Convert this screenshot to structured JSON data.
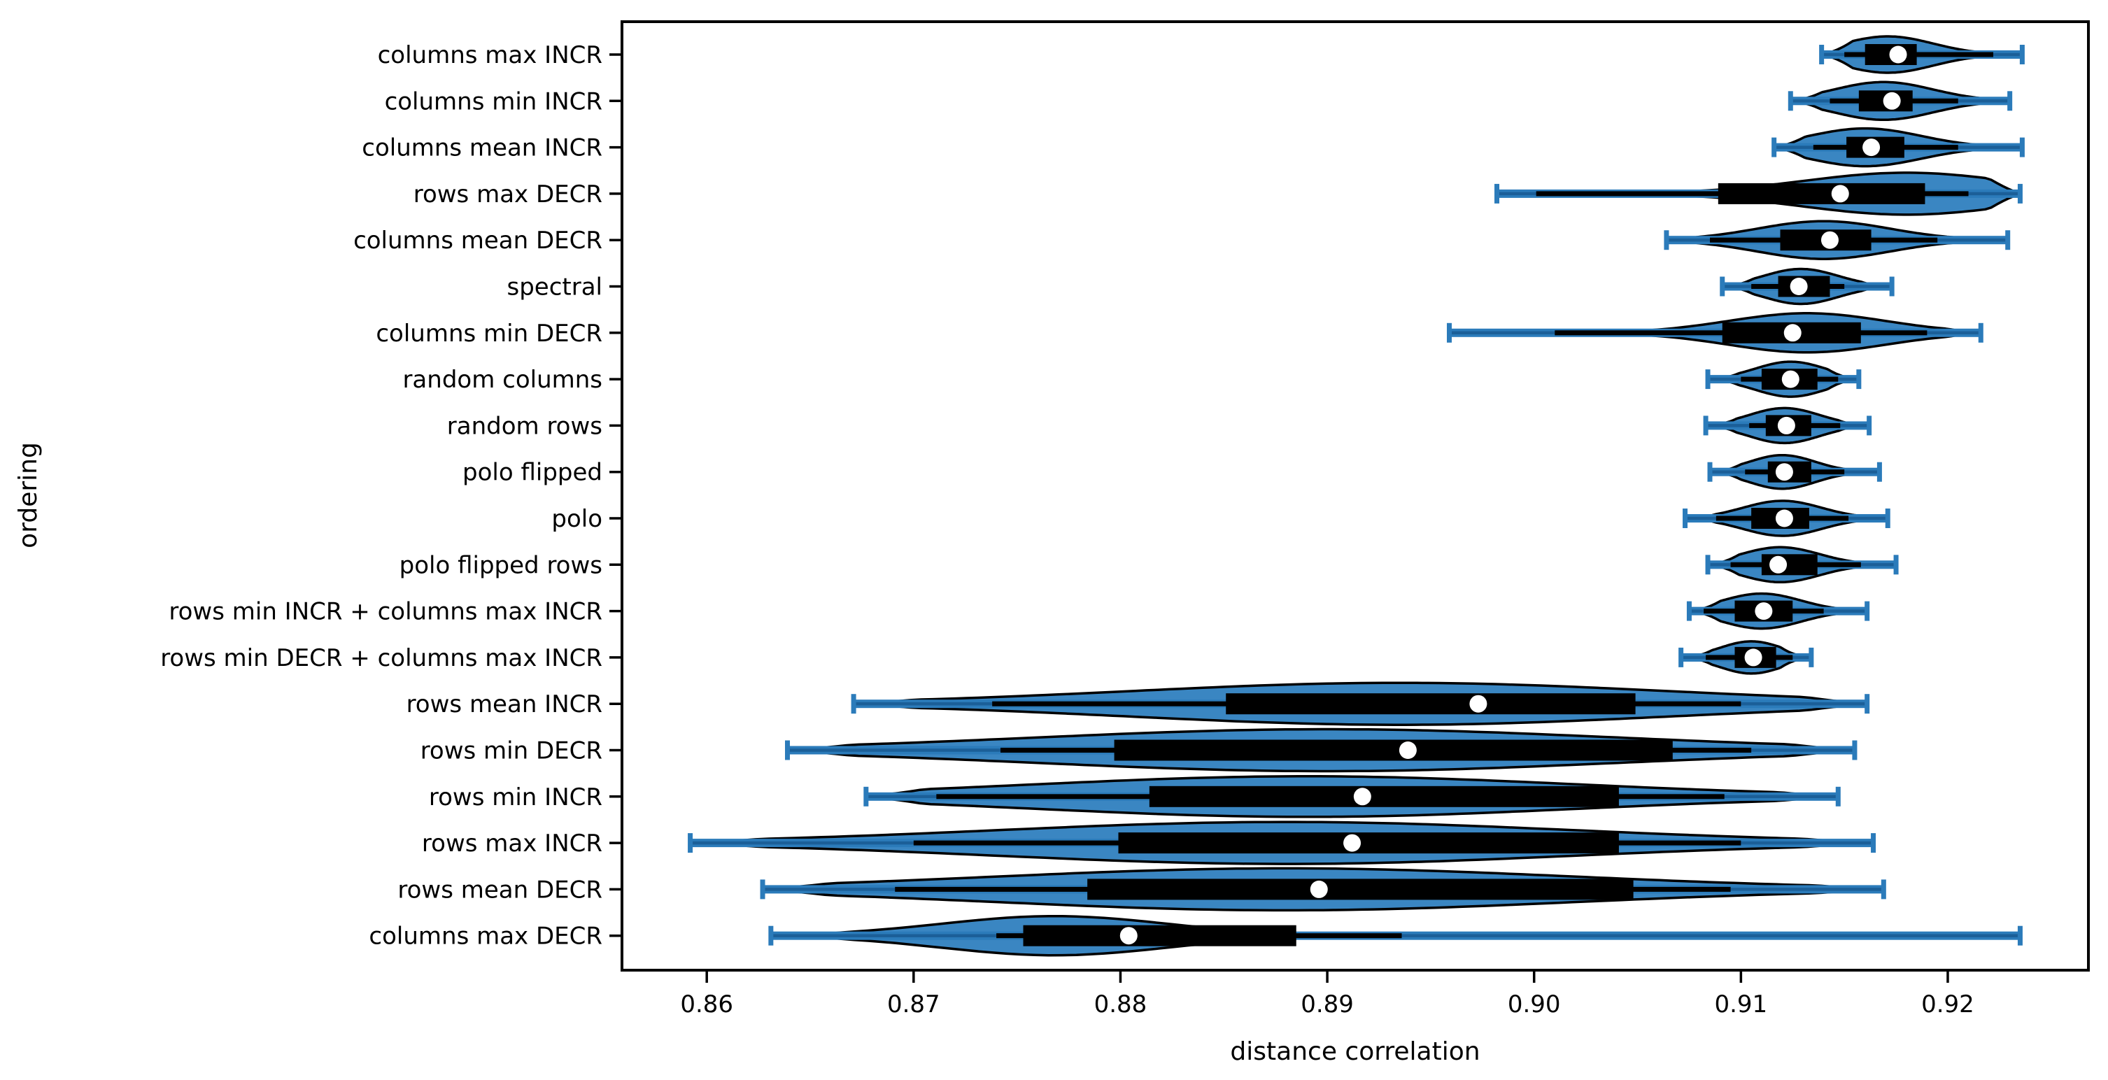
{
  "chart_data": {
    "type": "violin",
    "orientation": "horizontal",
    "title": "",
    "xlabel": "distance correlation",
    "ylabel": "ordering",
    "xlim": [
      0.8559,
      0.9268
    ],
    "x_ticks": [
      0.86,
      0.87,
      0.88,
      0.89,
      0.9,
      0.91,
      0.92
    ],
    "x_tick_labels": [
      "0.86",
      "0.87",
      "0.88",
      "0.89",
      "0.90",
      "0.91",
      "0.92"
    ],
    "grid": false,
    "legend": null,
    "colors": {
      "violin_fill": "#3a86c2",
      "violin_edge": "#000000",
      "whisker_band": "#2b7bba",
      "whisker_dark": "#1b5f98",
      "cap": "#2b7bba",
      "box": "#000000",
      "black_whisker": "#000000",
      "median_dot": "#ffffff",
      "text": "#000000",
      "background": "#ffffff"
    },
    "categories": [
      "columns max INCR",
      "columns min INCR",
      "columns mean INCR",
      "rows max DECR",
      "columns mean DECR",
      "spectral",
      "columns min DECR",
      "random columns",
      "random rows",
      "polo flipped",
      "polo",
      "polo flipped rows",
      "rows min INCR + columns max INCR",
      "rows min DECR + columns max INCR",
      "rows mean INCR",
      "rows min DECR",
      "rows min INCR",
      "rows max INCR",
      "rows mean DECR",
      "columns max DECR"
    ],
    "rows": [
      {
        "label": "columns max INCR",
        "whisker_min": 0.9139,
        "whisker_max": 0.9236,
        "q1": 0.916,
        "median": 0.9176,
        "q3": 0.9185,
        "mode": 0.9171,
        "bandwidth": 0.0022,
        "half_width": 26,
        "black_whisker": [
          0.915,
          0.9222
        ]
      },
      {
        "label": "columns min INCR",
        "whisker_min": 0.9124,
        "whisker_max": 0.923,
        "q1": 0.9157,
        "median": 0.9173,
        "q3": 0.9183,
        "mode": 0.9169,
        "bandwidth": 0.0024,
        "half_width": 27,
        "black_whisker": [
          0.9143,
          0.9205
        ]
      },
      {
        "label": "columns mean INCR",
        "whisker_min": 0.9116,
        "whisker_max": 0.9236,
        "q1": 0.9151,
        "median": 0.9163,
        "q3": 0.9179,
        "mode": 0.916,
        "bandwidth": 0.0027,
        "half_width": 27,
        "black_whisker": [
          0.9135,
          0.9205
        ]
      },
      {
        "label": "rows max DECR",
        "whisker_min": 0.8982,
        "whisker_max": 0.9235,
        "q1": 0.9089,
        "median": 0.9148,
        "q3": 0.9189,
        "mode": 0.918,
        "bandwidth": 0.005,
        "half_width": 30,
        "black_whisker": [
          0.9001,
          0.921
        ]
      },
      {
        "label": "columns mean DECR",
        "whisker_min": 0.9064,
        "whisker_max": 0.9229,
        "q1": 0.9119,
        "median": 0.9143,
        "q3": 0.9163,
        "mode": 0.914,
        "bandwidth": 0.0032,
        "half_width": 27,
        "black_whisker": [
          0.9085,
          0.9195
        ]
      },
      {
        "label": "spectral",
        "whisker_min": 0.9091,
        "whisker_max": 0.9173,
        "q1": 0.9118,
        "median": 0.9128,
        "q3": 0.9143,
        "mode": 0.9129,
        "bandwidth": 0.0018,
        "half_width": 25,
        "black_whisker": [
          0.9105,
          0.915
        ]
      },
      {
        "label": "columns min DECR",
        "whisker_min": 0.8959,
        "whisker_max": 0.9216,
        "q1": 0.9091,
        "median": 0.9125,
        "q3": 0.9158,
        "mode": 0.9132,
        "bandwidth": 0.0038,
        "half_width": 28,
        "black_whisker": [
          0.901,
          0.919
        ]
      },
      {
        "label": "random columns",
        "whisker_min": 0.9084,
        "whisker_max": 0.9157,
        "q1": 0.911,
        "median": 0.9124,
        "q3": 0.9137,
        "mode": 0.9124,
        "bandwidth": 0.0017,
        "half_width": 25,
        "black_whisker": [
          0.91,
          0.9147
        ]
      },
      {
        "label": "random rows",
        "whisker_min": 0.9083,
        "whisker_max": 0.9162,
        "q1": 0.9112,
        "median": 0.9122,
        "q3": 0.9134,
        "mode": 0.9121,
        "bandwidth": 0.0017,
        "half_width": 25,
        "black_whisker": [
          0.9104,
          0.9148
        ]
      },
      {
        "label": "polo flipped",
        "whisker_min": 0.9085,
        "whisker_max": 0.9167,
        "q1": 0.9113,
        "median": 0.9121,
        "q3": 0.9134,
        "mode": 0.912,
        "bandwidth": 0.0016,
        "half_width": 24,
        "black_whisker": [
          0.9102,
          0.915
        ]
      },
      {
        "label": "polo",
        "whisker_min": 0.9073,
        "whisker_max": 0.9171,
        "q1": 0.9105,
        "median": 0.9121,
        "q3": 0.9133,
        "mode": 0.912,
        "bandwidth": 0.0019,
        "half_width": 25,
        "black_whisker": [
          0.9088,
          0.9152
        ]
      },
      {
        "label": "polo flipped rows",
        "whisker_min": 0.9084,
        "whisker_max": 0.9175,
        "q1": 0.911,
        "median": 0.9118,
        "q3": 0.9137,
        "mode": 0.9119,
        "bandwidth": 0.0019,
        "half_width": 25,
        "black_whisker": [
          0.9095,
          0.9158
        ]
      },
      {
        "label": "rows min INCR + columns max INCR",
        "whisker_min": 0.9075,
        "whisker_max": 0.9161,
        "q1": 0.9097,
        "median": 0.9111,
        "q3": 0.9125,
        "mode": 0.911,
        "bandwidth": 0.0019,
        "half_width": 25,
        "black_whisker": [
          0.9082,
          0.914
        ]
      },
      {
        "label": "rows min DECR + columns max INCR",
        "whisker_min": 0.9071,
        "whisker_max": 0.9134,
        "q1": 0.9097,
        "median": 0.9106,
        "q3": 0.9117,
        "mode": 0.9105,
        "bandwidth": 0.0015,
        "half_width": 23,
        "black_whisker": [
          0.9083,
          0.9125
        ]
      },
      {
        "label": "rows mean INCR",
        "whisker_min": 0.8671,
        "whisker_max": 0.9161,
        "q1": 0.8851,
        "median": 0.8973,
        "q3": 0.9049,
        "mode": 0.8935,
        "bandwidth": 0.013,
        "half_width": 30,
        "black_whisker": [
          0.8738,
          0.91
        ]
      },
      {
        "label": "rows min DECR",
        "whisker_min": 0.8639,
        "whisker_max": 0.9155,
        "q1": 0.8797,
        "median": 0.8939,
        "q3": 0.9067,
        "mode": 0.89,
        "bandwidth": 0.014,
        "half_width": 30,
        "black_whisker": [
          0.8742,
          0.9105
        ]
      },
      {
        "label": "rows min INCR",
        "whisker_min": 0.8677,
        "whisker_max": 0.9147,
        "q1": 0.8814,
        "median": 0.8917,
        "q3": 0.9041,
        "mode": 0.889,
        "bandwidth": 0.013,
        "half_width": 29,
        "black_whisker": [
          0.8711,
          0.9092
        ]
      },
      {
        "label": "rows max INCR",
        "whisker_min": 0.8592,
        "whisker_max": 0.9164,
        "q1": 0.8799,
        "median": 0.8912,
        "q3": 0.9041,
        "mode": 0.888,
        "bandwidth": 0.014,
        "half_width": 30,
        "black_whisker": [
          0.87,
          0.91
        ]
      },
      {
        "label": "rows mean DECR",
        "whisker_min": 0.8627,
        "whisker_max": 0.9169,
        "q1": 0.8784,
        "median": 0.8896,
        "q3": 0.9048,
        "mode": 0.888,
        "bandwidth": 0.014,
        "half_width": 30,
        "black_whisker": [
          0.8691,
          0.9095
        ]
      },
      {
        "label": "columns max DECR",
        "whisker_min": 0.8631,
        "whisker_max": 0.9235,
        "q1": 0.8753,
        "median": 0.8804,
        "q3": 0.8885,
        "mode": 0.8768,
        "bandwidth": 0.0055,
        "half_width": 28,
        "black_whisker": [
          0.874,
          0.8936
        ]
      }
    ]
  }
}
